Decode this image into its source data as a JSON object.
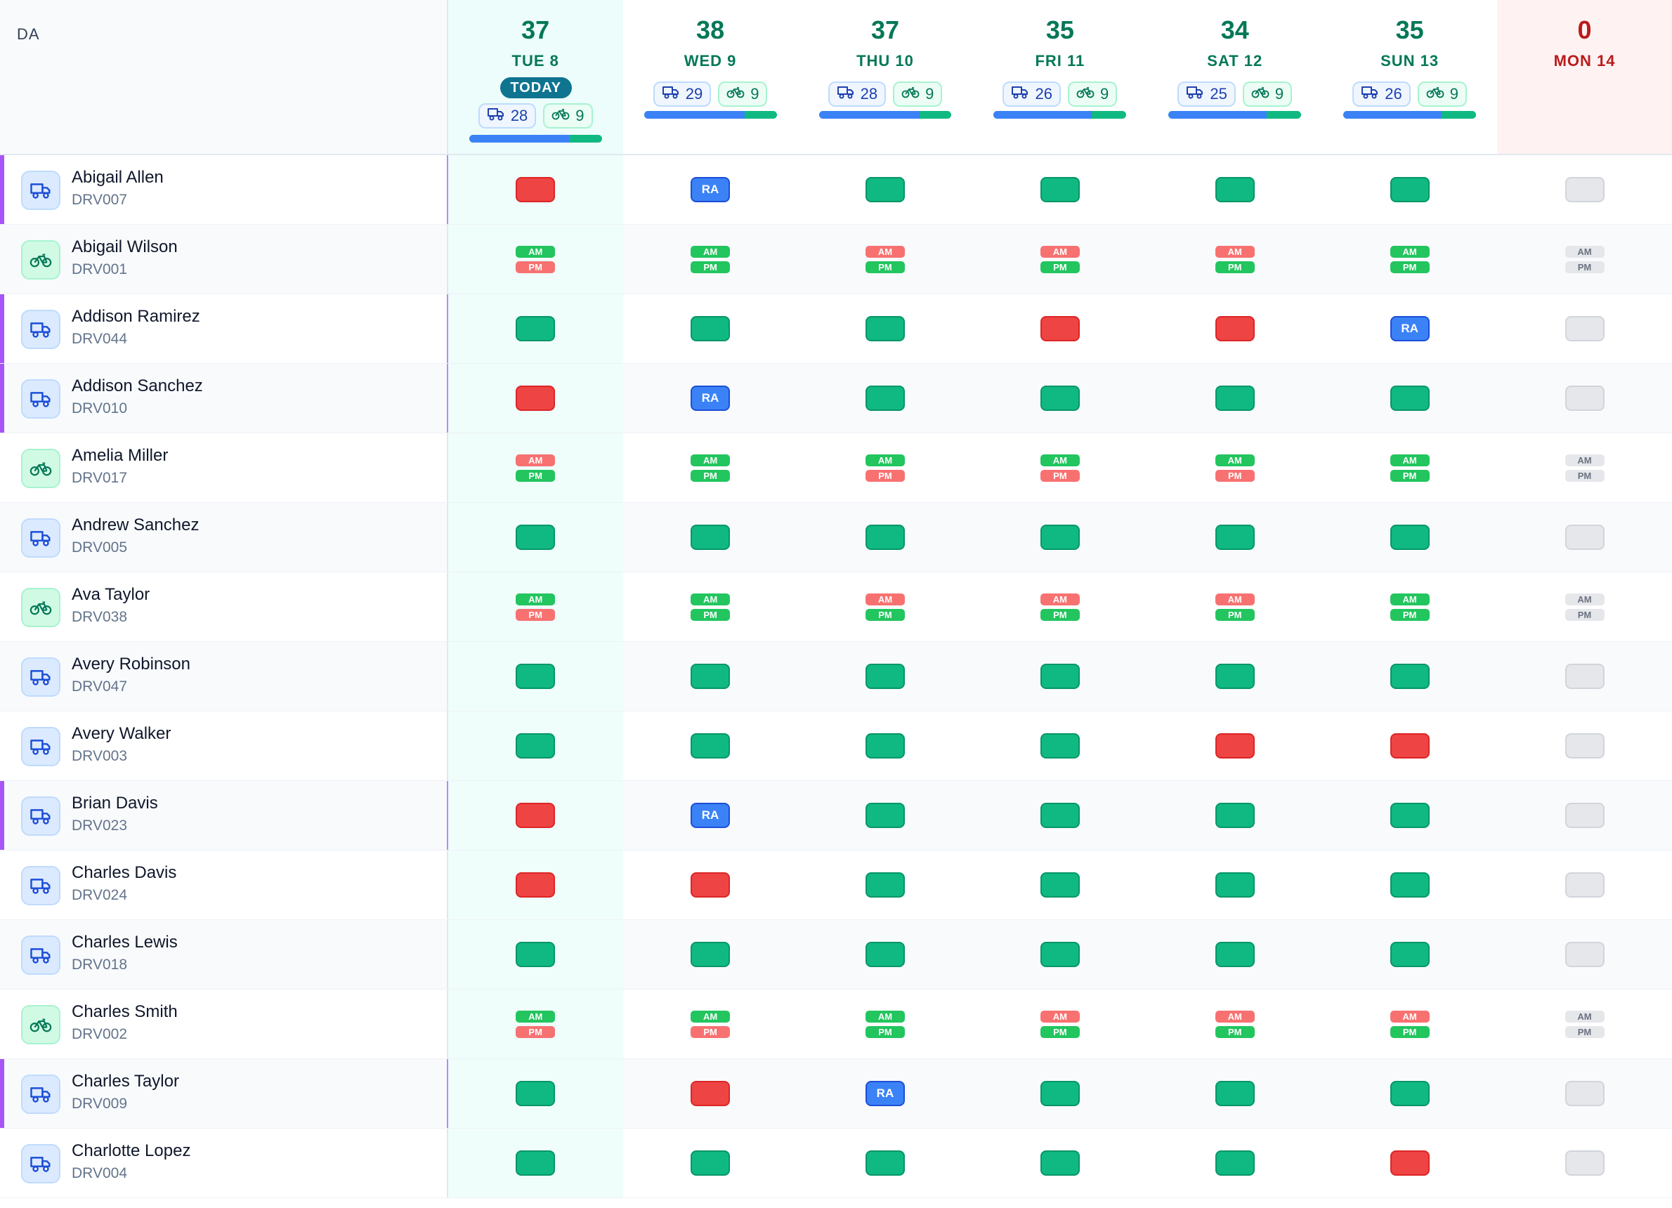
{
  "header": {
    "da_label": "DA",
    "today_label": "TODAY",
    "days": [
      {
        "count": "37",
        "label": "TUE 8",
        "today": true,
        "van": "28",
        "bike": "9",
        "van_share": 0.76
      },
      {
        "count": "38",
        "label": "WED 9",
        "today": false,
        "van": "29",
        "bike": "9",
        "van_share": 0.76
      },
      {
        "count": "37",
        "label": "THU 10",
        "today": false,
        "van": "28",
        "bike": "9",
        "van_share": 0.76
      },
      {
        "count": "35",
        "label": "FRI 11",
        "today": false,
        "van": "26",
        "bike": "9",
        "van_share": 0.74
      },
      {
        "count": "34",
        "label": "SAT 12",
        "today": false,
        "van": "25",
        "bike": "9",
        "van_share": 0.74
      },
      {
        "count": "35",
        "label": "SUN 13",
        "today": false,
        "van": "26",
        "bike": "9",
        "van_share": 0.74
      },
      {
        "count": "0",
        "label": "MON 14",
        "today": false,
        "off": true
      }
    ]
  },
  "labels": {
    "ra": "RA",
    "am": "AM",
    "pm": "PM"
  },
  "colors": {
    "working": "#10b981",
    "unavailable": "#ef4444",
    "rescue": "#3b82f6",
    "no_schedule": "#e5e7eb",
    "today_bg": "#ecfdfb",
    "accent": "#a855f7"
  },
  "drivers": [
    {
      "name": "Abigail Allen",
      "id": "DRV007",
      "vehicle": "van",
      "accent": true,
      "days": [
        "no",
        "ra",
        "ok",
        "ok",
        "ok",
        "ok",
        "off"
      ]
    },
    {
      "name": "Abigail Wilson",
      "id": "DRV001",
      "vehicle": "bike",
      "accent": false,
      "days": [
        [
          "ok",
          "no"
        ],
        [
          "ok",
          "ok"
        ],
        [
          "no",
          "ok"
        ],
        [
          "no",
          "ok"
        ],
        [
          "no",
          "ok"
        ],
        [
          "ok",
          "ok"
        ],
        [
          "off",
          "off"
        ]
      ]
    },
    {
      "name": "Addison Ramirez",
      "id": "DRV044",
      "vehicle": "van",
      "accent": true,
      "days": [
        "ok",
        "ok",
        "ok",
        "no",
        "no",
        "ra",
        "off"
      ]
    },
    {
      "name": "Addison Sanchez",
      "id": "DRV010",
      "vehicle": "van",
      "accent": true,
      "days": [
        "no",
        "ra",
        "ok",
        "ok",
        "ok",
        "ok",
        "off"
      ]
    },
    {
      "name": "Amelia Miller",
      "id": "DRV017",
      "vehicle": "bike",
      "accent": false,
      "days": [
        [
          "no",
          "ok"
        ],
        [
          "ok",
          "ok"
        ],
        [
          "ok",
          "no"
        ],
        [
          "ok",
          "no"
        ],
        [
          "ok",
          "no"
        ],
        [
          "ok",
          "ok"
        ],
        [
          "off",
          "off"
        ]
      ]
    },
    {
      "name": "Andrew Sanchez",
      "id": "DRV005",
      "vehicle": "van",
      "accent": false,
      "days": [
        "ok",
        "ok",
        "ok",
        "ok",
        "ok",
        "ok",
        "off"
      ]
    },
    {
      "name": "Ava Taylor",
      "id": "DRV038",
      "vehicle": "bike",
      "accent": false,
      "days": [
        [
          "ok",
          "no"
        ],
        [
          "ok",
          "ok"
        ],
        [
          "no",
          "ok"
        ],
        [
          "no",
          "ok"
        ],
        [
          "no",
          "ok"
        ],
        [
          "ok",
          "ok"
        ],
        [
          "off",
          "off"
        ]
      ]
    },
    {
      "name": "Avery Robinson",
      "id": "DRV047",
      "vehicle": "van",
      "accent": false,
      "days": [
        "ok",
        "ok",
        "ok",
        "ok",
        "ok",
        "ok",
        "off"
      ]
    },
    {
      "name": "Avery Walker",
      "id": "DRV003",
      "vehicle": "van",
      "accent": false,
      "days": [
        "ok",
        "ok",
        "ok",
        "ok",
        "no",
        "no",
        "off"
      ]
    },
    {
      "name": "Brian Davis",
      "id": "DRV023",
      "vehicle": "van",
      "accent": true,
      "days": [
        "no",
        "ra",
        "ok",
        "ok",
        "ok",
        "ok",
        "off"
      ]
    },
    {
      "name": "Charles Davis",
      "id": "DRV024",
      "vehicle": "van",
      "accent": false,
      "days": [
        "no",
        "no",
        "ok",
        "ok",
        "ok",
        "ok",
        "off"
      ]
    },
    {
      "name": "Charles Lewis",
      "id": "DRV018",
      "vehicle": "van",
      "accent": false,
      "days": [
        "ok",
        "ok",
        "ok",
        "ok",
        "ok",
        "ok",
        "off"
      ]
    },
    {
      "name": "Charles Smith",
      "id": "DRV002",
      "vehicle": "bike",
      "accent": false,
      "days": [
        [
          "ok",
          "no"
        ],
        [
          "ok",
          "no"
        ],
        [
          "ok",
          "ok"
        ],
        [
          "no",
          "ok"
        ],
        [
          "no",
          "ok"
        ],
        [
          "no",
          "ok"
        ],
        [
          "off",
          "off"
        ]
      ]
    },
    {
      "name": "Charles Taylor",
      "id": "DRV009",
      "vehicle": "van",
      "accent": true,
      "days": [
        "ok",
        "no",
        "ra",
        "ok",
        "ok",
        "ok",
        "off"
      ]
    },
    {
      "name": "Charlotte Lopez",
      "id": "DRV004",
      "vehicle": "van",
      "accent": false,
      "days": [
        "ok",
        "ok",
        "ok",
        "ok",
        "ok",
        "no",
        "off"
      ]
    }
  ]
}
